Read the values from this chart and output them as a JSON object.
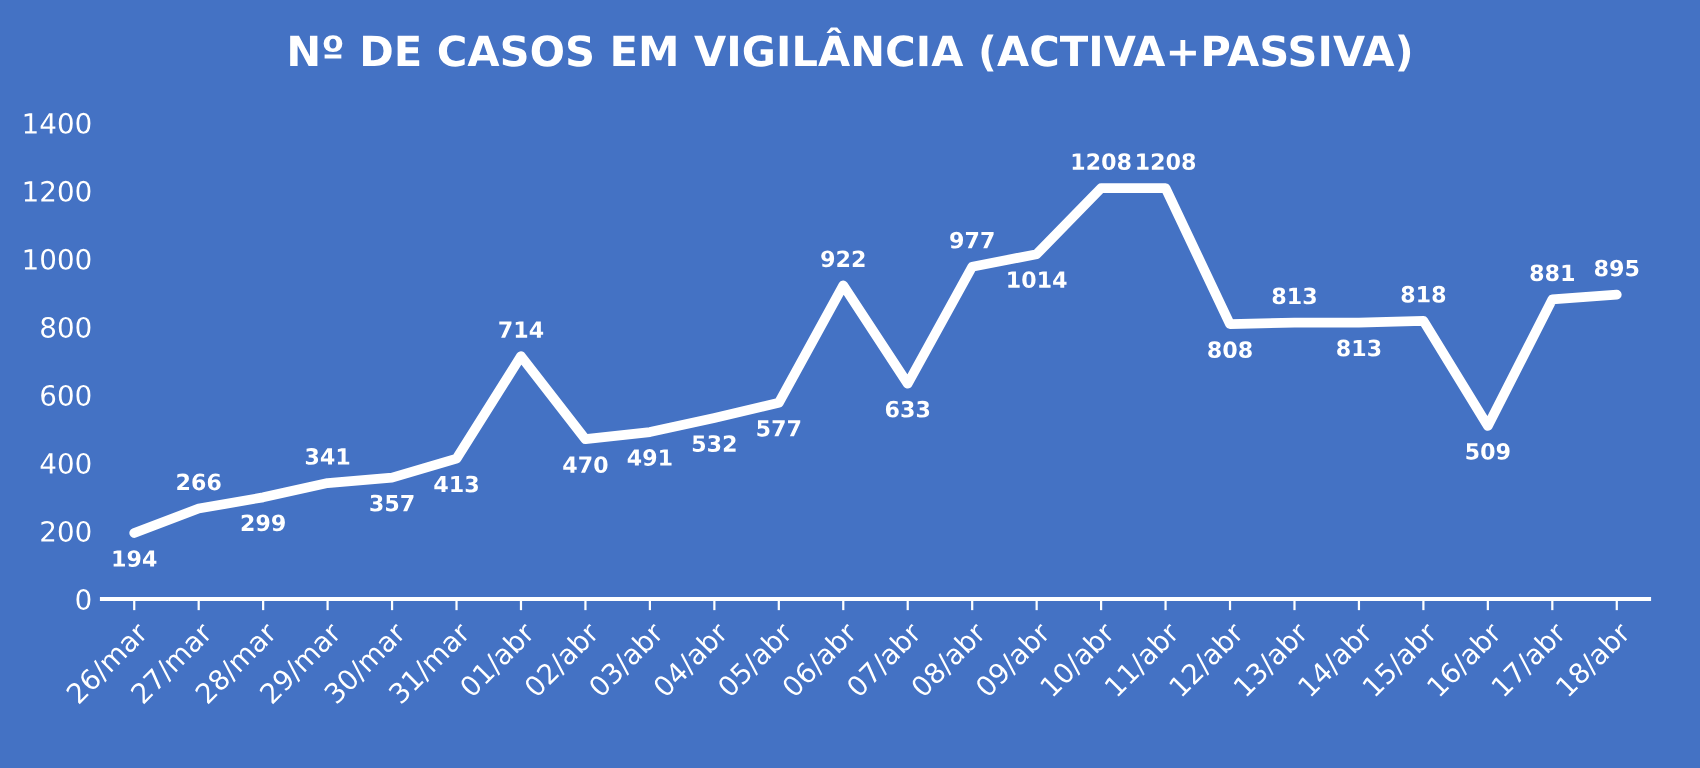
{
  "chart_data": {
    "type": "line",
    "title": "Nº DE CASOS EM VIGILÂNCIA (ACTIVA+PASSIVA)",
    "categories": [
      "26/mar",
      "27/mar",
      "28/mar",
      "29/mar",
      "30/mar",
      "31/mar",
      "01/abr",
      "02/abr",
      "03/abr",
      "04/abr",
      "05/abr",
      "06/abr",
      "07/abr",
      "08/abr",
      "09/abr",
      "10/abr",
      "11/abr",
      "12/abr",
      "13/abr",
      "14/abr",
      "15/abr",
      "16/abr",
      "17/abr",
      "18/abr"
    ],
    "series": [
      {
        "color": "#ffffff",
        "values": [
          194,
          266,
          299,
          341,
          357,
          413,
          714,
          470,
          491,
          532,
          577,
          922,
          633,
          977,
          1014,
          1208,
          1208,
          808,
          813,
          813,
          818,
          509,
          881,
          895
        ]
      }
    ],
    "ylim": [
      0,
      1400
    ],
    "yticks": [
      0,
      200,
      400,
      600,
      800,
      1000,
      1200,
      1400
    ],
    "grid": false,
    "legend": false,
    "marker": "none",
    "line_style": "solid",
    "data_labels": true
  }
}
